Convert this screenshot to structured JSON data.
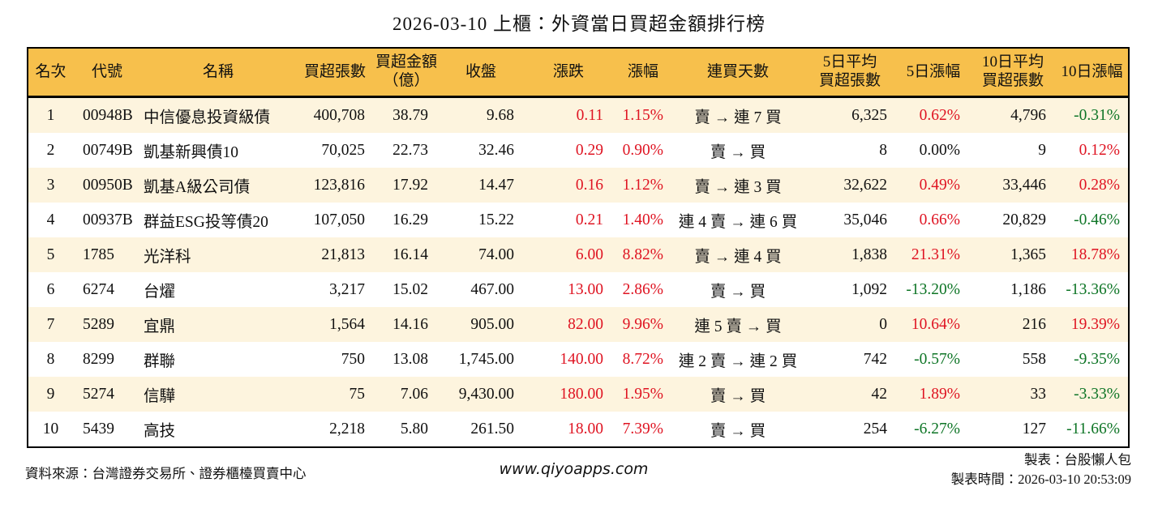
{
  "title": "2026-03-10 上櫃：外資當日買超金額排行榜",
  "colors": {
    "header_bg": "#f7c04c",
    "stripe_bg": "#fdf4de",
    "red": "#df1422",
    "green": "#0e7526",
    "border": "#000000",
    "text": "#111111"
  },
  "table": {
    "columns": [
      {
        "key": "rank",
        "label": "名次"
      },
      {
        "key": "code",
        "label": "代號"
      },
      {
        "key": "name",
        "label": "名稱"
      },
      {
        "key": "volume",
        "label": "買超張數"
      },
      {
        "key": "amount",
        "label": "買超金額\n（億）"
      },
      {
        "key": "close",
        "label": "收盤"
      },
      {
        "key": "change",
        "label": "漲跌"
      },
      {
        "key": "change_pct",
        "label": "漲幅"
      },
      {
        "key": "streak",
        "label": "連買天數"
      },
      {
        "key": "avg5",
        "label": "5日平均\n買超張數"
      },
      {
        "key": "pct5",
        "label": "5日漲幅"
      },
      {
        "key": "avg10",
        "label": "10日平均\n買超張數"
      },
      {
        "key": "pct10",
        "label": "10日漲幅"
      }
    ],
    "rows": [
      {
        "rank": "1",
        "code": "00948B",
        "name": "中信優息投資級債",
        "volume": "400,708",
        "amount": "38.79",
        "close": "9.68",
        "change": "0.11",
        "change_color": "red",
        "change_pct": "1.15%",
        "change_pct_color": "red",
        "streak": "賣 → 連 7 買",
        "avg5": "6,325",
        "pct5": "0.62%",
        "pct5_color": "red",
        "avg10": "4,796",
        "pct10": "-0.31%",
        "pct10_color": "green"
      },
      {
        "rank": "2",
        "code": "00749B",
        "name": "凱基新興債10",
        "volume": "70,025",
        "amount": "22.73",
        "close": "32.46",
        "change": "0.29",
        "change_color": "red",
        "change_pct": "0.90%",
        "change_pct_color": "red",
        "streak": "賣 → 買",
        "avg5": "8",
        "pct5": "0.00%",
        "pct5_color": "black",
        "avg10": "9",
        "pct10": "0.12%",
        "pct10_color": "red"
      },
      {
        "rank": "3",
        "code": "00950B",
        "name": "凱基A級公司債",
        "volume": "123,816",
        "amount": "17.92",
        "close": "14.47",
        "change": "0.16",
        "change_color": "red",
        "change_pct": "1.12%",
        "change_pct_color": "red",
        "streak": "賣 → 連 3 買",
        "avg5": "32,622",
        "pct5": "0.49%",
        "pct5_color": "red",
        "avg10": "33,446",
        "pct10": "0.28%",
        "pct10_color": "red"
      },
      {
        "rank": "4",
        "code": "00937B",
        "name": "群益ESG投等債20",
        "volume": "107,050",
        "amount": "16.29",
        "close": "15.22",
        "change": "0.21",
        "change_color": "red",
        "change_pct": "1.40%",
        "change_pct_color": "red",
        "streak": "連 4 賣 → 連 6 買",
        "avg5": "35,046",
        "pct5": "0.66%",
        "pct5_color": "red",
        "avg10": "20,829",
        "pct10": "-0.46%",
        "pct10_color": "green"
      },
      {
        "rank": "5",
        "code": "1785",
        "name": "光洋科",
        "volume": "21,813",
        "amount": "16.14",
        "close": "74.00",
        "change": "6.00",
        "change_color": "red",
        "change_pct": "8.82%",
        "change_pct_color": "red",
        "streak": "賣 → 連 4 買",
        "avg5": "1,838",
        "pct5": "21.31%",
        "pct5_color": "red",
        "avg10": "1,365",
        "pct10": "18.78%",
        "pct10_color": "red"
      },
      {
        "rank": "6",
        "code": "6274",
        "name": "台燿",
        "volume": "3,217",
        "amount": "15.02",
        "close": "467.00",
        "change": "13.00",
        "change_color": "red",
        "change_pct": "2.86%",
        "change_pct_color": "red",
        "streak": "賣 → 買",
        "avg5": "1,092",
        "pct5": "-13.20%",
        "pct5_color": "green",
        "avg10": "1,186",
        "pct10": "-13.36%",
        "pct10_color": "green"
      },
      {
        "rank": "7",
        "code": "5289",
        "name": "宜鼎",
        "volume": "1,564",
        "amount": "14.16",
        "close": "905.00",
        "change": "82.00",
        "change_color": "red",
        "change_pct": "9.96%",
        "change_pct_color": "red",
        "streak": "連 5 賣 → 買",
        "avg5": "0",
        "pct5": "10.64%",
        "pct5_color": "red",
        "avg10": "216",
        "pct10": "19.39%",
        "pct10_color": "red"
      },
      {
        "rank": "8",
        "code": "8299",
        "name": "群聯",
        "volume": "750",
        "amount": "13.08",
        "close": "1,745.00",
        "change": "140.00",
        "change_color": "red",
        "change_pct": "8.72%",
        "change_pct_color": "red",
        "streak": "連 2 賣 → 連 2 買",
        "avg5": "742",
        "pct5": "-0.57%",
        "pct5_color": "green",
        "avg10": "558",
        "pct10": "-9.35%",
        "pct10_color": "green"
      },
      {
        "rank": "9",
        "code": "5274",
        "name": "信驊",
        "volume": "75",
        "amount": "7.06",
        "close": "9,430.00",
        "change": "180.00",
        "change_color": "red",
        "change_pct": "1.95%",
        "change_pct_color": "red",
        "streak": "賣 → 買",
        "avg5": "42",
        "pct5": "1.89%",
        "pct5_color": "red",
        "avg10": "33",
        "pct10": "-3.33%",
        "pct10_color": "green"
      },
      {
        "rank": "10",
        "code": "5439",
        "name": "高技",
        "volume": "2,218",
        "amount": "5.80",
        "close": "261.50",
        "change": "18.00",
        "change_color": "red",
        "change_pct": "7.39%",
        "change_pct_color": "red",
        "streak": "賣 → 買",
        "avg5": "254",
        "pct5": "-6.27%",
        "pct5_color": "green",
        "avg10": "127",
        "pct10": "-11.66%",
        "pct10_color": "green"
      }
    ]
  },
  "footer": {
    "source": "資料來源：台灣證券交易所、證券櫃檯買賣中心",
    "website": "www.qiyoapps.com",
    "maker": "製表：台股懶人包",
    "made_at": "製表時間：2026-03-10 20:53:09"
  }
}
